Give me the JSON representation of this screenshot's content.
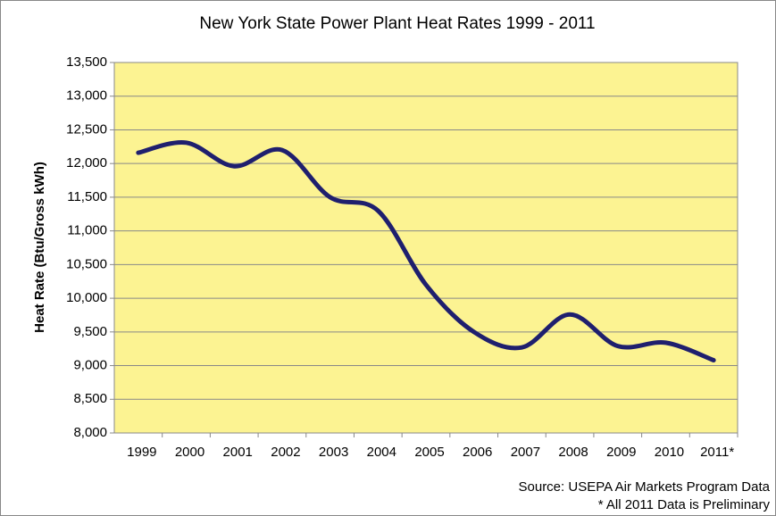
{
  "chart_data": {
    "type": "line",
    "title": "New York State Power Plant Heat Rates 1999 - 2011",
    "y_label": "Heat Rate (Btu/Gross kWh)",
    "notes": [
      "Source: USEPA Air Markets Program Data",
      "* All 2011 Data is Preliminary"
    ],
    "categories": [
      "1999",
      "2000",
      "2001",
      "2002",
      "2003",
      "2004",
      "2005",
      "2006",
      "2007",
      "2008",
      "2009",
      "2010",
      "2011*"
    ],
    "values": [
      12160,
      12310,
      11960,
      12200,
      11500,
      11300,
      10200,
      9500,
      9270,
      9760,
      9290,
      9340,
      9080
    ],
    "color": "#1f1f6e",
    "plot_background": "#fcf392",
    "grid": true,
    "ylim": [
      8000,
      13500
    ],
    "yticks": [
      {
        "value": 8000,
        "label": "8,000"
      },
      {
        "value": 8500,
        "label": "8,500"
      },
      {
        "value": 9000,
        "label": "9,000"
      },
      {
        "value": 9500,
        "label": "9,500"
      },
      {
        "value": 10000,
        "label": "10,000"
      },
      {
        "value": 10500,
        "label": "10,500"
      },
      {
        "value": 11000,
        "label": "11,000"
      },
      {
        "value": 11500,
        "label": "11,500"
      },
      {
        "value": 12000,
        "label": "12,000"
      },
      {
        "value": 12500,
        "label": "12,500"
      },
      {
        "value": 13000,
        "label": "13,000"
      },
      {
        "value": 13500,
        "label": "13,500"
      }
    ]
  }
}
